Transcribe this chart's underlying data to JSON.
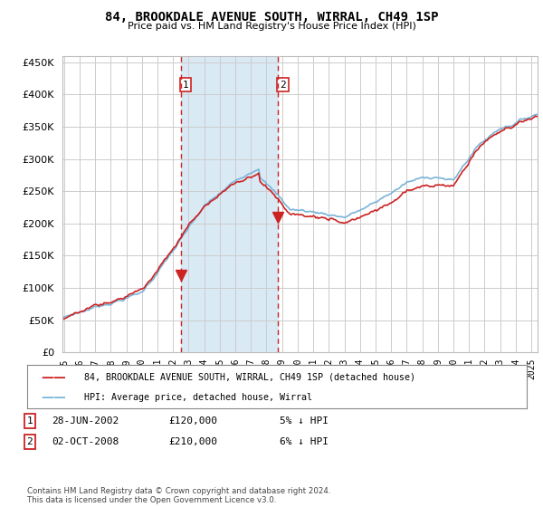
{
  "title": "84, BROOKDALE AVENUE SOUTH, WIRRAL, CH49 1SP",
  "subtitle": "Price paid vs. HM Land Registry's House Price Index (HPI)",
  "ytick_values": [
    0,
    50000,
    100000,
    150000,
    200000,
    250000,
    300000,
    350000,
    400000,
    450000
  ],
  "ylim": [
    0,
    460000
  ],
  "hpi_color": "#7ab4d8",
  "price_color": "#cc2222",
  "marker1_year": 2002.49,
  "marker1_price": 120000,
  "marker2_year": 2008.75,
  "marker2_price": 210000,
  "sale1_label": "28-JUN-2002",
  "sale1_price": "£120,000",
  "sale1_hpi": "5% ↓ HPI",
  "sale2_label": "02-OCT-2008",
  "sale2_price": "£210,000",
  "sale2_hpi": "6% ↓ HPI",
  "legend_label1": "84, BROOKDALE AVENUE SOUTH, WIRRAL, CH49 1SP (detached house)",
  "legend_label2": "HPI: Average price, detached house, Wirral",
  "footnote": "Contains HM Land Registry data © Crown copyright and database right 2024.\nThis data is licensed under the Open Government Licence v3.0.",
  "background_color": "#ffffff",
  "plot_bg_color": "#ffffff",
  "grid_color": "#cccccc",
  "shading_color": "#daeaf5",
  "xtick_years": [
    1995,
    1996,
    1997,
    1998,
    1999,
    2000,
    2001,
    2002,
    2003,
    2004,
    2005,
    2006,
    2007,
    2008,
    2009,
    2010,
    2011,
    2012,
    2013,
    2014,
    2015,
    2016,
    2017,
    2018,
    2019,
    2020,
    2021,
    2022,
    2023,
    2024,
    2025
  ]
}
